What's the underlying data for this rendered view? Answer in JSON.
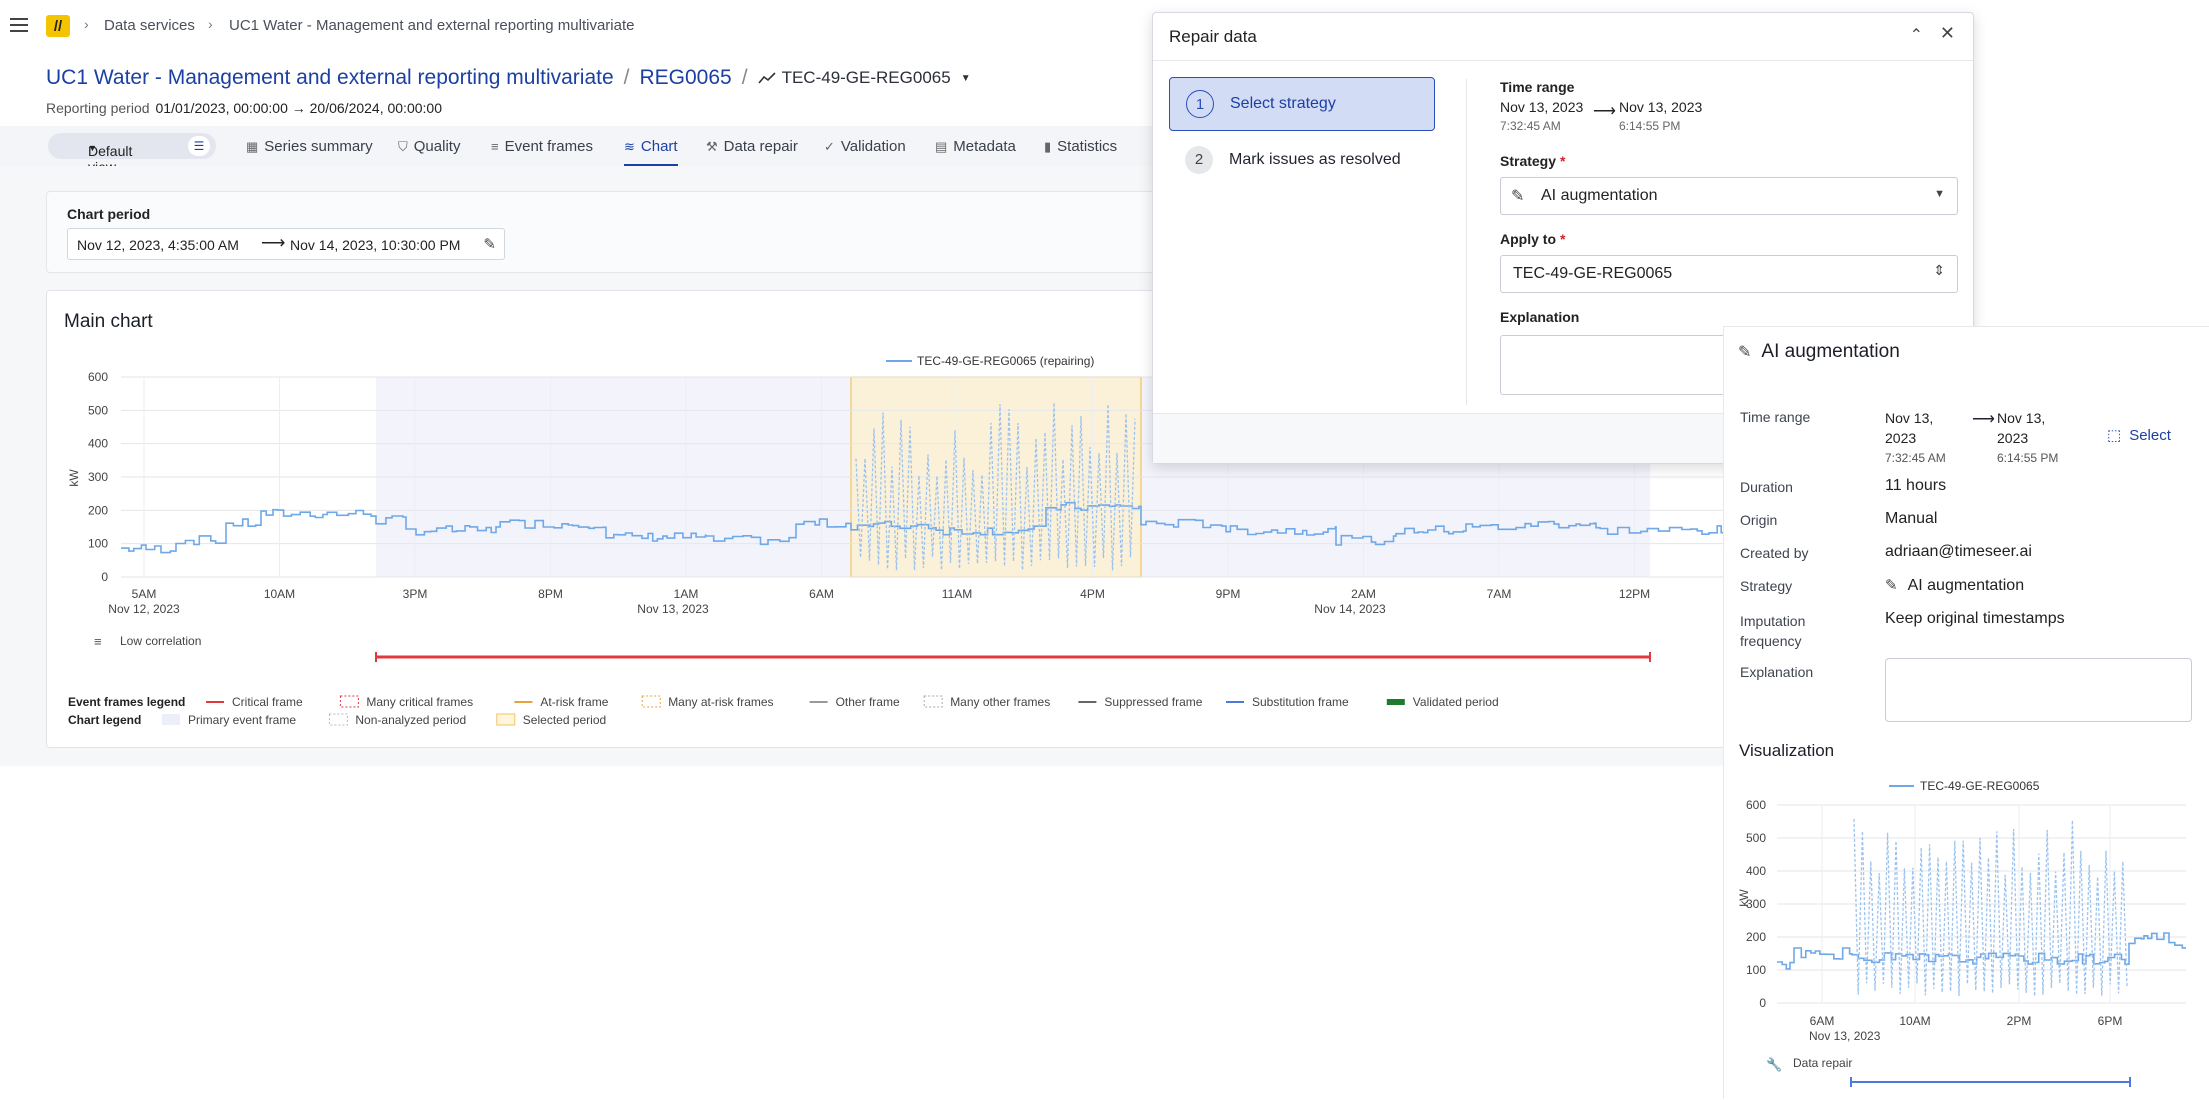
{
  "topbar": {
    "breadcrumb_1": "Data services",
    "breadcrumb_2": "UC1 Water - Management and external reporting multivariate"
  },
  "header": {
    "title": "UC1 Water - Management and external reporting multivariate",
    "asset": "REG0065",
    "series": "TEC-49-GE-REG0065",
    "reporting_label": "Reporting period",
    "reporting_value": "01/01/2023, 00:00:00 → 20/06/2024, 00:00:00"
  },
  "tabs": {
    "view": "Default view",
    "items": [
      "Series summary",
      "Quality",
      "Event frames",
      "Chart",
      "Data repair",
      "Validation",
      "Metadata",
      "Statistics"
    ],
    "active": "Chart"
  },
  "period": {
    "label": "Chart period",
    "start": "Nov 12, 2023, 4:35:00 AM",
    "end": "Nov 14, 2023, 10:30:00 PM"
  },
  "main_chart": {
    "title": "Main chart",
    "legend_series": "TEC-49-GE-REG0065 (repairing)",
    "ylabel": "kW",
    "yticks": [
      "600",
      "500",
      "400",
      "300",
      "200",
      "100",
      "0"
    ],
    "xticks": [
      "5AM",
      "10AM",
      "3PM",
      "8PM",
      "1AM",
      "6AM",
      "11AM",
      "4PM",
      "9PM",
      "2AM",
      "7AM",
      "12PM"
    ],
    "xdates": [
      "Nov 12, 2023",
      "Nov 13, 2023",
      "Nov 14, 2023"
    ],
    "event_row_label": "Low correlation",
    "event_legend_label": "Event frames legend",
    "event_legend": [
      "Critical frame",
      "Many critical frames",
      "At-risk frame",
      "Many at-risk frames",
      "Other frame",
      "Many other frames",
      "Suppressed frame",
      "Substitution frame",
      "Validated period"
    ],
    "chart_legend_label": "Chart legend",
    "chart_legend": [
      "Primary event frame",
      "Non-analyzed period",
      "Selected period"
    ]
  },
  "modal": {
    "title": "Repair data",
    "steps": [
      {
        "num": "1",
        "label": "Select strategy"
      },
      {
        "num": "2",
        "label": "Mark issues as resolved"
      }
    ],
    "time_range_label": "Time range",
    "tr_start_date": "Nov 13, 2023",
    "tr_start_time": "7:32:45 AM",
    "tr_end_date": "Nov 13, 2023",
    "tr_end_time": "6:14:55 PM",
    "strategy_label": "Strategy",
    "strategy_value": "AI augmentation",
    "apply_label": "Apply to",
    "apply_value": "TEC-49-GE-REG0065",
    "explanation_label": "Explanation"
  },
  "panel": {
    "title": "AI augmentation",
    "time_range_label": "Time range",
    "tr_start_a": "Nov 13,",
    "tr_start_b": "2023",
    "tr_start_time": "7:32:45 AM",
    "tr_end_a": "Nov 13,",
    "tr_end_b": "2023",
    "tr_end_time": "6:14:55 PM",
    "select_label": "Select",
    "duration_label": "Duration",
    "duration_value": "11 hours",
    "origin_label": "Origin",
    "origin_value": "Manual",
    "created_label": "Created by",
    "created_value": "adriaan@timeseer.ai",
    "strategy_label": "Strategy",
    "strategy_value": "AI augmentation",
    "imputation_label_1": "Imputation",
    "imputation_label_2": "frequency",
    "imputation_value": "Keep original timestamps",
    "explanation_label": "Explanation",
    "visualization_label": "Visualization",
    "viz_legend": "TEC-49-GE-REG0065",
    "viz_ylabel": "kW",
    "viz_yticks": [
      "600",
      "500",
      "400",
      "300",
      "200",
      "100",
      "0"
    ],
    "viz_xticks": [
      "6AM",
      "10AM",
      "2PM",
      "6PM"
    ],
    "viz_xdate": "Nov 13, 2023",
    "data_repair_label": "Data repair"
  },
  "colors": {
    "accent": "#1c3fa3",
    "series": "#6fa8e8",
    "selected": "#f5e3b0",
    "critical": "#e0393e"
  },
  "chart_data": [
    {
      "type": "line",
      "title": "Main chart",
      "ylabel": "kW",
      "ylim": [
        0,
        600
      ],
      "series": [
        {
          "name": "TEC-49-GE-REG0065 (repairing)"
        }
      ],
      "selected_period": [
        "Nov 13, 2023 7:32:45 AM",
        "Nov 13, 2023 6:14:55 PM"
      ]
    },
    {
      "type": "line",
      "title": "Visualization",
      "ylabel": "kW",
      "ylim": [
        0,
        600
      ],
      "series": [
        {
          "name": "TEC-49-GE-REG0065"
        }
      ]
    }
  ]
}
